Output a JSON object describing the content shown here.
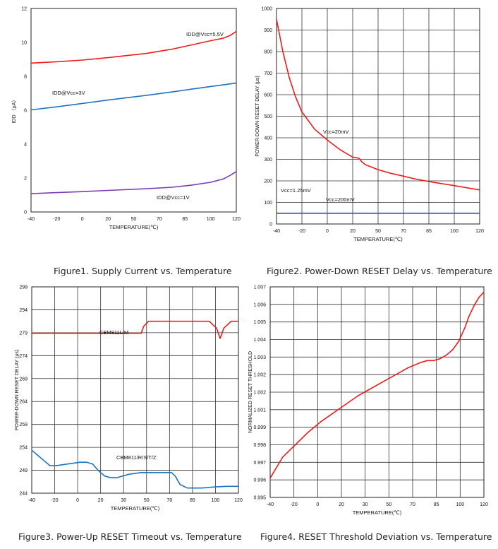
{
  "captions": [
    "Figure1. Supply Current vs. Temperature",
    "Figure2. Power-Down RESET Delay vs. Temperature",
    "Figure3. Power-Up RESET Timeout vs. Temperature",
    "Figure4. RESET Threshold Deviation vs. Temperature"
  ],
  "chart_data": [
    {
      "type": "line",
      "title": "Figure1. Supply Current vs. Temperature",
      "xlabel": "TEMPERATURE(℃)",
      "ylabel": "IDD （μA）",
      "xlim": [
        -40,
        120
      ],
      "ylim": [
        0,
        12
      ],
      "xticks": [
        "-40",
        "-20",
        "0",
        "20",
        "50",
        "70",
        "85",
        "100",
        "120"
      ],
      "yticks": [
        "0",
        "2",
        "4",
        "6",
        "8",
        "10",
        "12"
      ],
      "grid": false,
      "series": [
        {
          "name": "IDD@Vcc=5.5V",
          "color": "#ee1c1c",
          "x": [
            -40,
            -20,
            0,
            20,
            50,
            70,
            85,
            100,
            110,
            115,
            120
          ],
          "y": [
            8.78,
            8.86,
            8.96,
            9.1,
            9.35,
            9.6,
            9.85,
            10.1,
            10.25,
            10.4,
            10.65
          ]
        },
        {
          "name": "IDD@Vcc=3V",
          "color": "#1e73be",
          "x": [
            -40,
            -20,
            0,
            20,
            50,
            70,
            85,
            100,
            120
          ],
          "y": [
            6.02,
            6.2,
            6.4,
            6.6,
            6.88,
            7.08,
            7.24,
            7.4,
            7.6
          ]
        },
        {
          "name": "IDD@Vcc=1V",
          "color": "#7a3fb5",
          "x": [
            -40,
            -20,
            0,
            20,
            50,
            70,
            85,
            100,
            110,
            115,
            120
          ],
          "y": [
            1.08,
            1.14,
            1.2,
            1.27,
            1.37,
            1.46,
            1.58,
            1.75,
            1.95,
            2.15,
            2.38
          ]
        }
      ]
    },
    {
      "type": "line",
      "title": "Figure2. Power-Down RESET Delay vs. Temperature",
      "xlabel": "TEMPERATURE(℃)",
      "ylabel": "POWER-DOWN RESET DELAY (μs)",
      "xlim": [
        -40,
        120
      ],
      "ylim": [
        0,
        1000
      ],
      "xticks": [
        "-40",
        "-20",
        "0",
        "20",
        "50",
        "70",
        "85",
        "100",
        "120"
      ],
      "yticks": [
        "0",
        "100",
        "200",
        "300",
        "400",
        "500",
        "600",
        "700",
        "800",
        "900",
        "1000"
      ],
      "grid": true,
      "series": [
        {
          "name": "Vcc=20mV",
          "color": "#ee1c1c",
          "x": [
            -40,
            -35,
            -30,
            -25,
            -20,
            -10,
            0,
            10,
            20,
            25,
            27,
            30,
            40,
            50,
            60,
            70,
            85,
            100,
            120
          ],
          "y": [
            950,
            800,
            680,
            590,
            520,
            440,
            390,
            345,
            310,
            305,
            290,
            275,
            252,
            235,
            222,
            208,
            192,
            178,
            158
          ]
        },
        {
          "name": "Vcc=200mV",
          "color": "#3f49b5",
          "x": [
            -40,
            120
          ],
          "y": [
            50,
            50
          ]
        }
      ],
      "annotations": [
        "Vcc=1.25mV"
      ]
    },
    {
      "type": "line",
      "title": "Figure3. Power-Up RESET Timeout vs. Temperature",
      "xlabel": "TEMPERATURE(℃)",
      "ylabel": "POWER-DOWN RESET DELAY (μs)",
      "xlim": [
        -40,
        130
      ],
      "ylim": [
        244,
        304
      ],
      "xticks": [
        "-40",
        "-20",
        "0",
        "20",
        "30",
        "50",
        "70",
        "85",
        "100",
        "120"
      ],
      "yticks": [
        "244",
        "249",
        "254",
        "259",
        "264",
        "269",
        "274",
        "279",
        "294",
        "299"
      ],
      "grid": true,
      "series": [
        {
          "name": "CBM811L/M",
          "color": "#ee1c1c",
          "x": [
            -40,
            48,
            50,
            52,
            56,
            60,
            100,
            106,
            112,
            115,
            118,
            124,
            130
          ],
          "y": [
            290.5,
            290.5,
            290.5,
            292.5,
            294,
            294,
            294,
            294,
            292,
            289,
            292,
            294,
            294
          ]
        },
        {
          "name": "CBM811/R/S/T/Z",
          "color": "#1e73be",
          "x": [
            -40,
            -35,
            -30,
            -25,
            -20,
            -10,
            0,
            5,
            10,
            15,
            20,
            25,
            30,
            40,
            50,
            60,
            75,
            78,
            82,
            88,
            100,
            110,
            120,
            130
          ],
          "y": [
            256.5,
            255,
            253.5,
            252,
            252,
            252.5,
            253,
            253,
            252.5,
            250.5,
            249,
            248.5,
            248.5,
            249.5,
            250,
            250,
            250,
            249,
            246.5,
            245.5,
            245.5,
            245.8,
            246,
            246
          ]
        }
      ]
    },
    {
      "type": "line",
      "title": "Figure4. RESET Threshold Deviation vs. Temperature",
      "xlabel": "TEMPERATURE(℃)",
      "ylabel": "NORMALIZED RESET THRESHOLD",
      "xlim": [
        -40,
        130
      ],
      "ylim": [
        0.995,
        1.007
      ],
      "xticks": [
        "-40",
        "-20",
        "0",
        "20",
        "30",
        "50",
        "70",
        "85",
        "100",
        "120"
      ],
      "yticks": [
        "0.995",
        "0.996",
        "0.997",
        "0.998",
        "0.999",
        "1.001",
        "1.002",
        "1.002",
        "1.003",
        "1.004",
        "1.005",
        "1.006",
        "1.007"
      ],
      "grid": true,
      "series": [
        {
          "name": "",
          "color": "#ee1c1c",
          "x": [
            -40,
            -30,
            -20,
            -10,
            0,
            10,
            20,
            30,
            40,
            50,
            60,
            70,
            80,
            85,
            90,
            95,
            100,
            105,
            110,
            115,
            118,
            122,
            126,
            130
          ],
          "y": [
            0.9961,
            0.9973,
            0.998,
            0.9987,
            0.9993,
            0.9998,
            1.0003,
            1.0008,
            1.0012,
            1.0016,
            1.002,
            1.0024,
            1.0027,
            1.0028,
            1.0028,
            1.0029,
            1.0031,
            1.0034,
            1.0039,
            1.0047,
            1.0053,
            1.0059,
            1.0064,
            1.0067
          ]
        }
      ]
    }
  ]
}
